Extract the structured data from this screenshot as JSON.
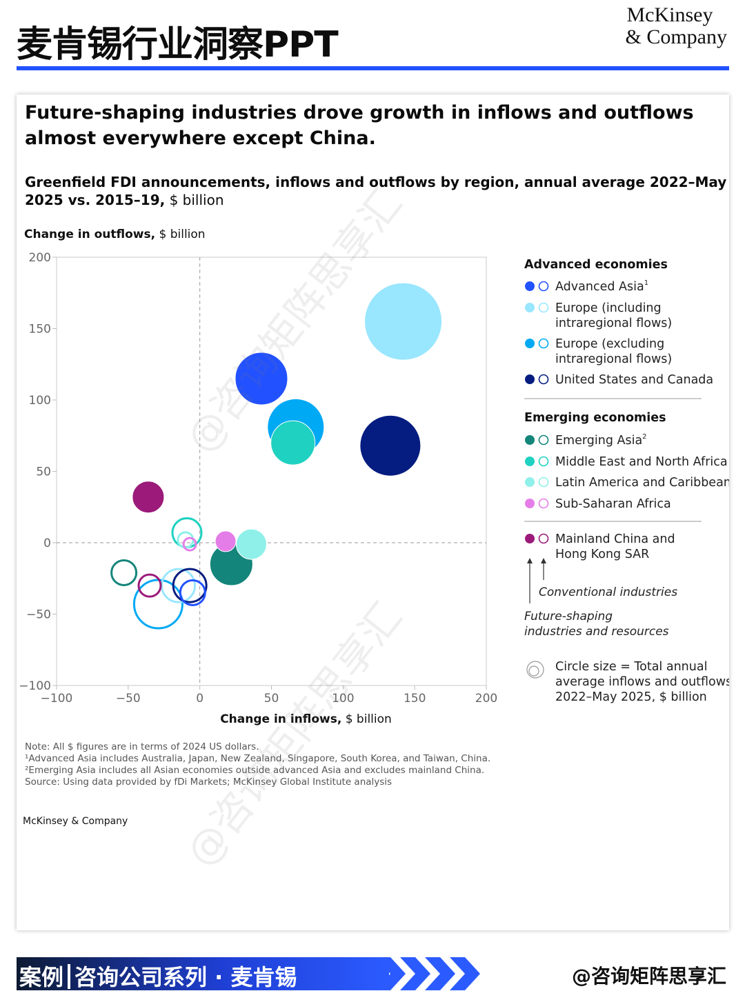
{
  "header": {
    "title": "麦肯锡行业洞察PPT",
    "brand_line1": "McKinsey",
    "brand_line2": "& Company"
  },
  "card": {
    "title": "Future-shaping industries drove growth in inflows and outflows almost everywhere except China.",
    "subtitle_bold": "Greenfield FDI announcements, inflows and outflows by region, annual average 2022–May 2025 vs. 2015–19,",
    "subtitle_rest": " $ billion",
    "notes": [
      "Note: All $ figures are in terms of 2024 US dollars.",
      "¹Advanced Asia includes Australia, Japan, New Zealand, Singapore, South Korea, and Taiwan, China.",
      "²Emerging Asia includes all Asian economies outside advanced Asia and excludes mainland China.",
      "Source: Using data provided by fDi Markets; McKinsey Global Institute analysis"
    ],
    "brand": "McKinsey & Company"
  },
  "chart_data": {
    "type": "scatter",
    "ylabel_bold": "Change in outflows,",
    "ylabel_rest": " $ billion",
    "xlabel_bold": "Change in inflows,",
    "xlabel_rest": " $ billion",
    "xlim": [
      -100,
      200
    ],
    "ylim": [
      -100,
      200
    ],
    "xticks": [
      -100,
      -50,
      0,
      50,
      100,
      150,
      200
    ],
    "yticks": [
      -100,
      -50,
      0,
      50,
      100,
      150,
      200
    ],
    "tick_labels_x": [
      "−100",
      "−50",
      "0",
      "50",
      "100",
      "150",
      "200"
    ],
    "tick_labels_y": [
      "−100",
      "−50",
      "0",
      "50",
      "100",
      "150",
      "200"
    ],
    "series": [
      {
        "name": "Advanced Asia",
        "sup": "1",
        "group": "Advanced economies",
        "color": "#2251ff",
        "future": {
          "x": 43,
          "y": 115,
          "size": 38
        },
        "conventional": {
          "x": -5,
          "y": -35,
          "size": 18
        }
      },
      {
        "name": "Europe (including intraregional flows)",
        "group": "Advanced economies",
        "color": "#99e6ff",
        "future": {
          "x": 142,
          "y": 155,
          "size": 56
        },
        "conventional": {
          "x": -15,
          "y": -30,
          "size": 24
        }
      },
      {
        "name": "Europe (excluding intraregional flows)",
        "group": "Advanced economies",
        "color": "#00a9f4",
        "future": {
          "x": 67,
          "y": 81,
          "size": 41
        },
        "conventional": {
          "x": -29,
          "y": -43,
          "size": 35
        }
      },
      {
        "name": "United States and Canada",
        "group": "Advanced economies",
        "color": "#051c80",
        "future": {
          "x": 133,
          "y": 68,
          "size": 44
        },
        "conventional": {
          "x": -7,
          "y": -30,
          "size": 24
        }
      },
      {
        "name": "Emerging Asia",
        "sup": "2",
        "group": "Emerging economies",
        "color": "#14857a",
        "future": {
          "x": 22,
          "y": -15,
          "size": 31
        },
        "conventional": {
          "x": -53,
          "y": -21,
          "size": 18
        }
      },
      {
        "name": "Middle East and North Africa",
        "group": "Emerging economies",
        "color": "#1fd1c0",
        "future": {
          "x": 65,
          "y": 70,
          "size": 32
        },
        "conventional": {
          "x": -9,
          "y": 7,
          "size": 21
        }
      },
      {
        "name": "Latin America and Caribbean",
        "group": "Emerging economies",
        "color": "#8ef0e8",
        "future": {
          "x": 36,
          "y": -1,
          "size": 22
        },
        "conventional": {
          "x": -10,
          "y": 2,
          "size": 11
        }
      },
      {
        "name": "Sub-Saharan Africa",
        "group": "Emerging economies",
        "color": "#e57de8",
        "future": {
          "x": 18,
          "y": 1,
          "size": 15
        },
        "conventional": {
          "x": -7,
          "y": -1,
          "size": 9
        }
      },
      {
        "name": "Mainland China and Hong Kong SAR",
        "group": "",
        "color": "#9b1a7a",
        "future": {
          "x": -36,
          "y": 32,
          "size": 23
        },
        "conventional": {
          "x": -35,
          "y": -30,
          "size": 16
        }
      }
    ],
    "legend": {
      "placement": "right",
      "group1": "Advanced economies",
      "group2": "Emerging economies",
      "conventional_label": "Conventional industries",
      "future_label_1": "Future-shaping",
      "future_label_2": "industries and resources",
      "size_note_1": "Circle size = Total annual",
      "size_note_2": "average inflows and outflows,",
      "size_note_3": "2022–May 2025, $ billion"
    }
  },
  "footer": {
    "tag1": "案例",
    "tag2": "咨询公司系列 · 麦肯锡",
    "handle": "@咨询矩阵思享汇"
  },
  "watermark": "@咨询矩阵思享汇"
}
